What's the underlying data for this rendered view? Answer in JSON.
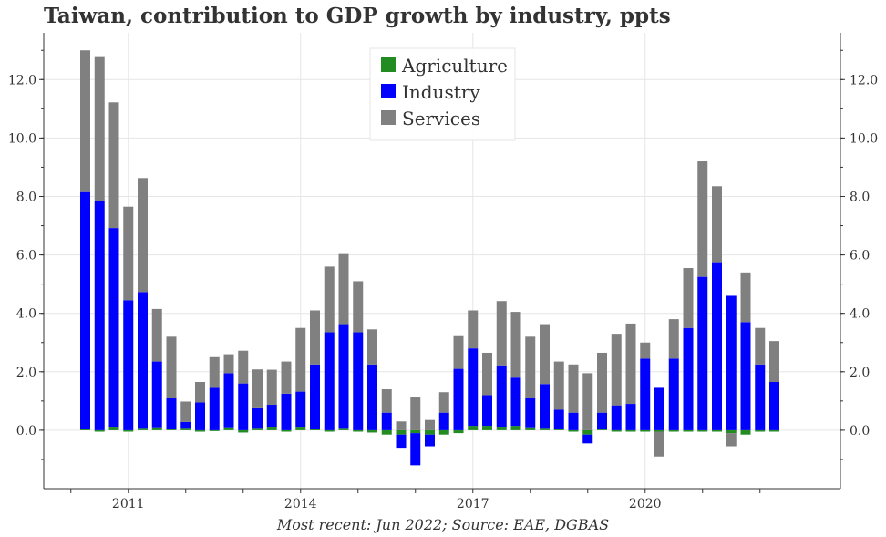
{
  "title": "Taiwan, contribution to GDP growth by industry, ppts",
  "source": "Most recent: Jun 2022; Source: EAE, DGBAS",
  "chart_data": {
    "type": "bar",
    "stacked": true,
    "title": "Taiwan, contribution to GDP growth by industry, ppts",
    "ylim": [
      -2.0,
      13.6
    ],
    "y_ticks": [
      "0.0",
      "2.0",
      "4.0",
      "6.0",
      "8.0",
      "10.0",
      "12.0"
    ],
    "x_tick_labels": [
      "2011",
      "2014",
      "2017",
      "2020"
    ],
    "grid": true,
    "legend_position": "top-center",
    "categories": [
      "2010Q2",
      "2010Q3",
      "2010Q4",
      "2011Q1",
      "2011Q2",
      "2011Q3",
      "2011Q4",
      "2012Q1",
      "2012Q2",
      "2012Q3",
      "2012Q4",
      "2013Q1",
      "2013Q2",
      "2013Q3",
      "2013Q4",
      "2014Q1",
      "2014Q2",
      "2014Q3",
      "2014Q4",
      "2015Q1",
      "2015Q2",
      "2015Q3",
      "2015Q4",
      "2016Q1",
      "2016Q2",
      "2016Q3",
      "2016Q4",
      "2017Q1",
      "2017Q2",
      "2017Q3",
      "2017Q4",
      "2018Q1",
      "2018Q2",
      "2018Q3",
      "2018Q4",
      "2019Q1",
      "2019Q2",
      "2019Q3",
      "2019Q4",
      "2020Q1",
      "2020Q2",
      "2020Q3",
      "2020Q4",
      "2021Q1",
      "2021Q2",
      "2021Q3",
      "2021Q4",
      "2022Q1",
      "2022Q2"
    ],
    "series": [
      {
        "name": "Agriculture",
        "color": "#228b22",
        "values": [
          0.05,
          -0.05,
          0.12,
          -0.05,
          0.08,
          0.1,
          0.05,
          0.08,
          -0.05,
          -0.03,
          0.1,
          -0.08,
          0.08,
          0.12,
          -0.05,
          0.12,
          0.05,
          -0.05,
          0.08,
          -0.05,
          -0.08,
          -0.15,
          -0.15,
          -0.1,
          -0.15,
          -0.15,
          -0.1,
          0.15,
          0.15,
          0.12,
          0.15,
          0.1,
          0.08,
          0.05,
          -0.05,
          -0.15,
          0.05,
          -0.05,
          -0.05,
          -0.05,
          -0.05,
          -0.05,
          -0.05,
          -0.05,
          -0.05,
          -0.1,
          -0.15,
          -0.05,
          -0.05
        ]
      },
      {
        "name": "Industry",
        "color": "#0000ff",
        "values": [
          8.1,
          7.85,
          6.8,
          4.45,
          4.65,
          2.25,
          1.05,
          0.2,
          0.95,
          1.45,
          1.85,
          1.6,
          0.7,
          0.75,
          1.25,
          1.2,
          2.2,
          3.35,
          3.55,
          3.35,
          2.25,
          0.6,
          -0.45,
          -1.1,
          -0.4,
          0.6,
          2.1,
          2.65,
          1.05,
          2.1,
          1.65,
          1.0,
          1.5,
          0.65,
          0.6,
          -0.3,
          0.55,
          0.85,
          0.9,
          2.45,
          1.45,
          2.45,
          3.5,
          5.25,
          5.75,
          4.6,
          3.7,
          2.25,
          1.65
        ]
      },
      {
        "name": "Services",
        "color": "#808080",
        "values": [
          4.85,
          4.95,
          4.3,
          3.2,
          3.9,
          1.8,
          2.1,
          0.7,
          0.7,
          1.05,
          0.65,
          1.12,
          1.3,
          1.2,
          1.1,
          2.18,
          1.85,
          2.25,
          2.4,
          1.75,
          1.2,
          0.8,
          0.3,
          1.15,
          0.35,
          0.7,
          1.15,
          1.3,
          1.45,
          2.2,
          2.25,
          2.1,
          2.05,
          1.65,
          1.65,
          1.95,
          2.05,
          2.45,
          2.75,
          0.55,
          -0.85,
          1.35,
          2.05,
          3.95,
          2.6,
          -0.45,
          1.7,
          1.25,
          1.4
        ]
      }
    ]
  }
}
